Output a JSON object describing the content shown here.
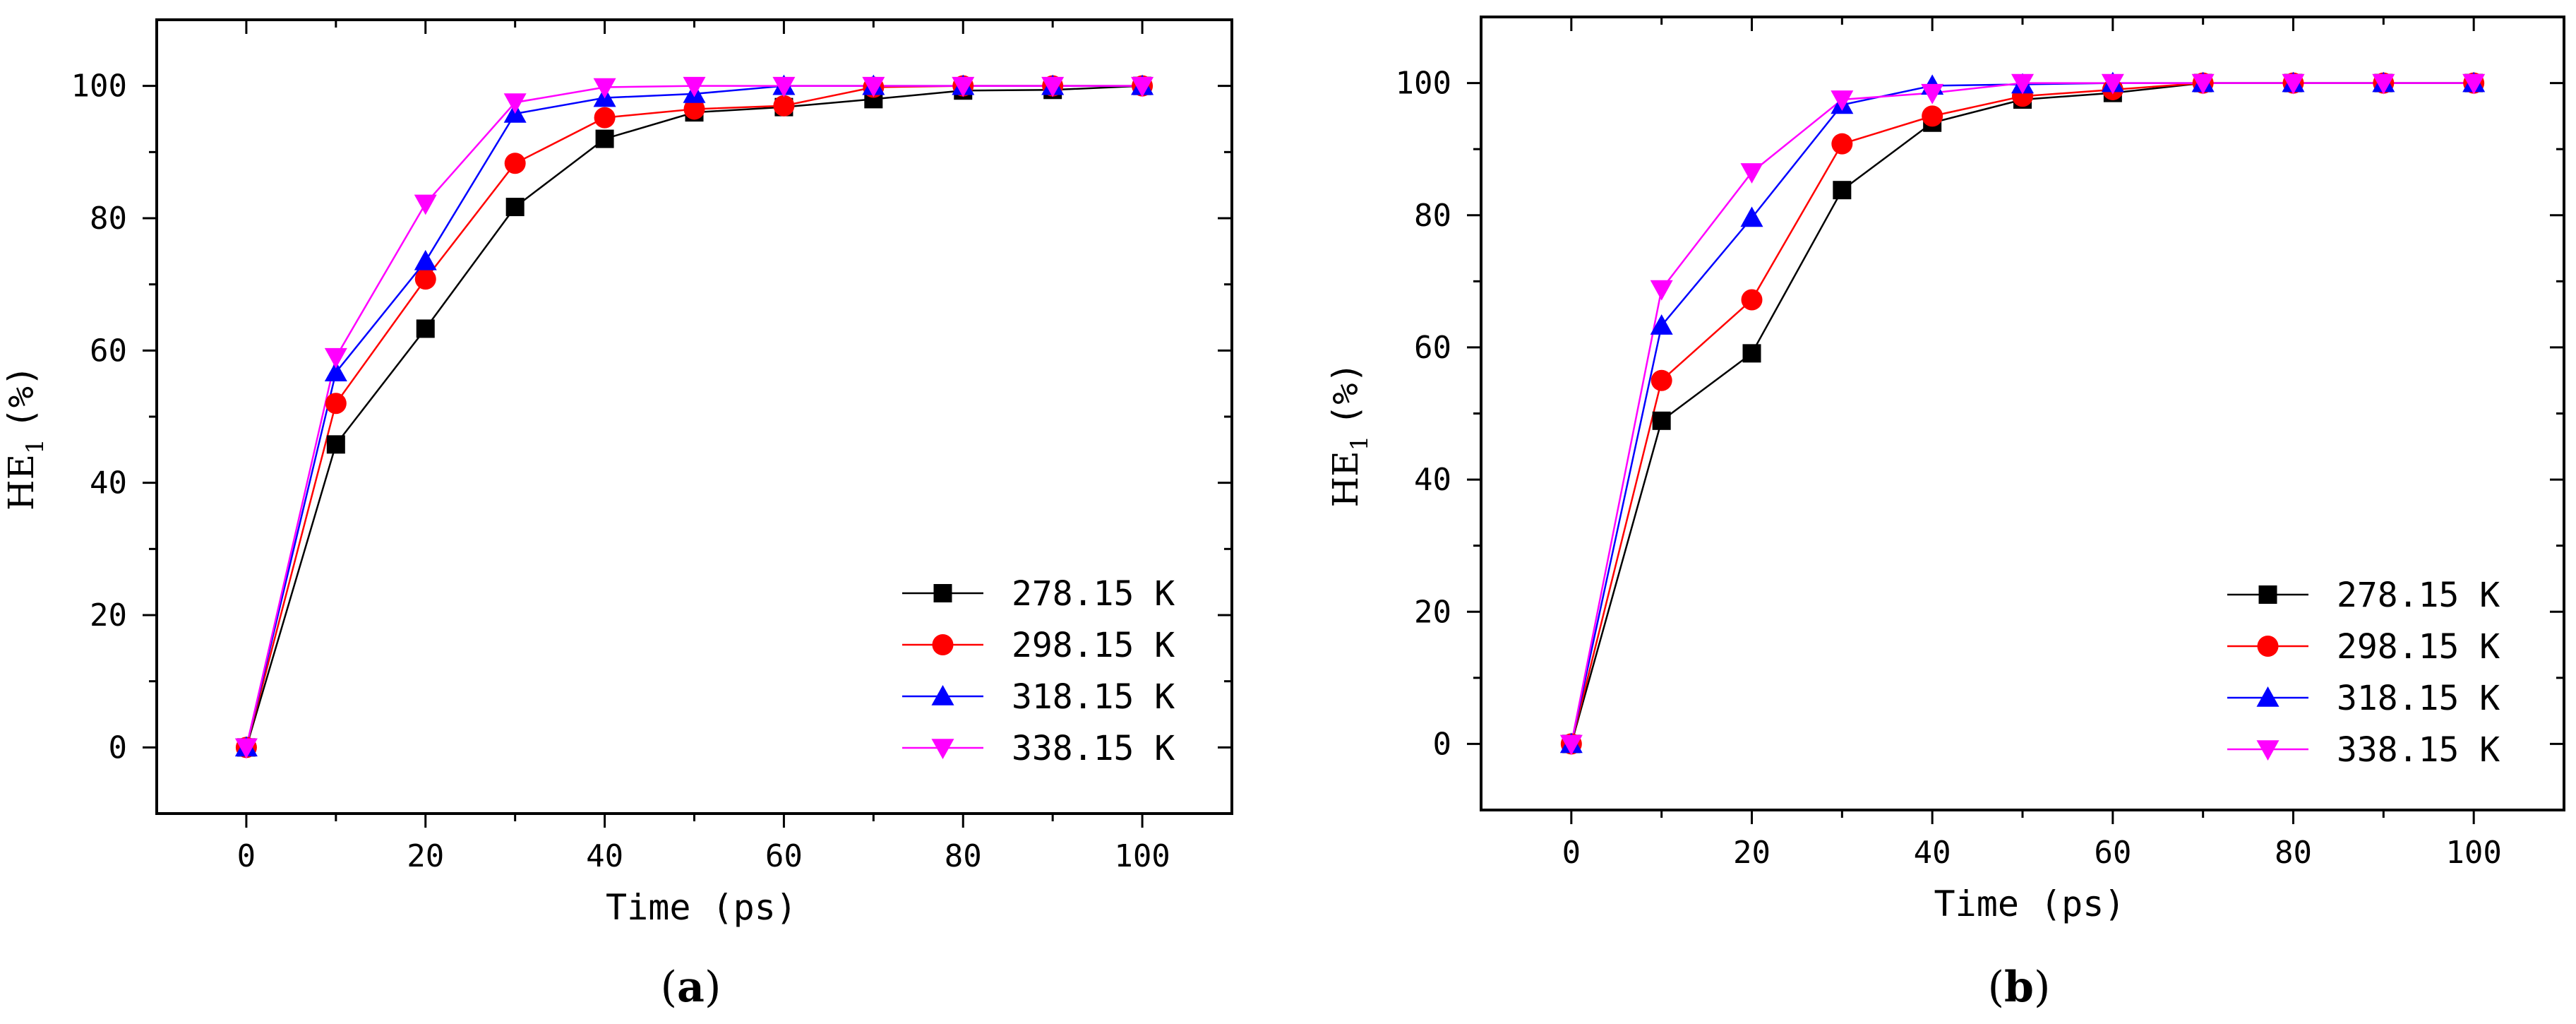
{
  "chart_data": [
    {
      "type": "line",
      "panel_label_prefix": "(",
      "panel_label": "a",
      "panel_label_suffix": ")",
      "title": "",
      "xlabel": "Time (ps)",
      "ylabel_main": "HE",
      "ylabel_sub": "1",
      "ylabel_unit": "(%)",
      "xlim": [
        -10,
        110
      ],
      "ylim": [
        -10,
        110
      ],
      "x_major_ticks": [
        0,
        20,
        40,
        60,
        80,
        100
      ],
      "x_tick_labels": [
        "0",
        "20",
        "40",
        "60",
        "80",
        "100"
      ],
      "y_major_ticks": [
        0,
        20,
        40,
        60,
        80,
        100
      ],
      "y_tick_labels": [
        "0",
        "20",
        "40",
        "60",
        "80",
        "100"
      ],
      "grid": false,
      "legend_position": "bottom-right",
      "x": [
        0,
        10,
        20,
        30,
        40,
        50,
        60,
        70,
        80,
        90,
        100
      ],
      "series": [
        {
          "name": "278.15 K",
          "color": "#000000",
          "marker": "square",
          "values": [
            0,
            45.8,
            63.3,
            81.7,
            92.0,
            96.0,
            96.8,
            98.0,
            99.3,
            99.4,
            100
          ]
        },
        {
          "name": "298.15 K",
          "color": "#ff0000",
          "marker": "circle",
          "values": [
            0,
            52.0,
            70.8,
            88.3,
            95.2,
            96.5,
            97.0,
            99.8,
            100,
            100,
            100
          ]
        },
        {
          "name": "318.15 K",
          "color": "#0000ff",
          "marker": "triangle-up",
          "values": [
            0,
            56.7,
            73.5,
            95.8,
            98.2,
            98.8,
            100,
            100,
            100,
            100,
            100
          ]
        },
        {
          "name": "338.15 K",
          "color": "#ff00ff",
          "marker": "triangle-down",
          "values": [
            0,
            59.0,
            82.2,
            97.5,
            99.8,
            100,
            100,
            100,
            100,
            100,
            100
          ]
        }
      ]
    },
    {
      "type": "line",
      "panel_label_prefix": "(",
      "panel_label": "b",
      "panel_label_suffix": ")",
      "title": "",
      "xlabel": "Time (ps)",
      "ylabel_main": "HE",
      "ylabel_sub": "1",
      "ylabel_unit": "(%)",
      "xlim": [
        -10,
        110
      ],
      "ylim": [
        -10,
        110
      ],
      "x_major_ticks": [
        0,
        20,
        40,
        60,
        80,
        100
      ],
      "x_tick_labels": [
        "0",
        "20",
        "40",
        "60",
        "80",
        "100"
      ],
      "y_major_ticks": [
        0,
        20,
        40,
        60,
        80,
        100
      ],
      "y_tick_labels": [
        "0",
        "20",
        "40",
        "60",
        "80",
        "100"
      ],
      "grid": false,
      "legend_position": "bottom-right",
      "x": [
        0,
        10,
        20,
        30,
        40,
        50,
        60,
        70,
        80,
        90,
        100
      ],
      "series": [
        {
          "name": "278.15 K",
          "color": "#000000",
          "marker": "square",
          "values": [
            0,
            48.9,
            59.1,
            83.8,
            94.0,
            97.5,
            98.5,
            100,
            100,
            100,
            100
          ]
        },
        {
          "name": "298.15 K",
          "color": "#ff0000",
          "marker": "circle",
          "values": [
            0,
            55.0,
            67.2,
            90.8,
            95.0,
            98.0,
            99.0,
            100,
            100,
            100,
            100
          ]
        },
        {
          "name": "318.15 K",
          "color": "#0000ff",
          "marker": "triangle-up",
          "values": [
            0,
            63.3,
            79.6,
            96.7,
            99.6,
            99.8,
            100,
            100,
            100,
            100,
            100
          ]
        },
        {
          "name": "338.15 K",
          "color": "#ff00ff",
          "marker": "triangle-down",
          "values": [
            0,
            68.8,
            86.5,
            97.5,
            98.5,
            100,
            100,
            100,
            100,
            100,
            100
          ]
        }
      ]
    }
  ]
}
